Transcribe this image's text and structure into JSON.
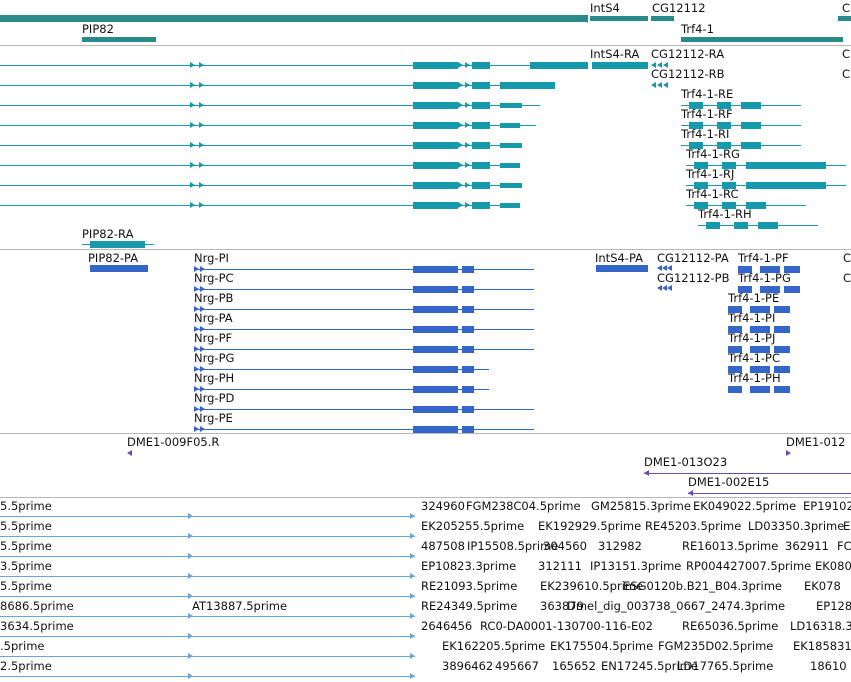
{
  "gene_track": {
    "labels": [
      "IntS4",
      "CG12112",
      "C",
      "PIP82",
      "Trf4-1"
    ]
  },
  "transcript_track": {
    "labels": [
      "IntS4-RA",
      "CG12112-RA",
      "C",
      "CG12112-RB",
      "C",
      "Trf4-1-RE",
      "Trf4-1-RF",
      "Trf4-1-RI",
      "Trf4-1-RG",
      "Trf4-1-RJ",
      "Trf4-1-RC",
      "Trf4-1-RH",
      "PIP82-RA"
    ]
  },
  "protein_track": {
    "labels": [
      "PIP82-PA",
      "Nrg-PI",
      "IntS4-PA",
      "CG12112-PA",
      "Trf4-1-PF",
      "C",
      "Nrg-PC",
      "CG12112-PB",
      "Trf4-1-PG",
      "C",
      "Nrg-PB",
      "Trf4-1-PE",
      "Nrg-PA",
      "Trf4-1-PI",
      "Nrg-PF",
      "Trf4-1-PJ",
      "Nrg-PG",
      "Trf4-1-PC",
      "Nrg-PH",
      "Trf4-1-PH",
      "Nrg-PD",
      "Nrg-PE"
    ]
  },
  "clone_track": {
    "labels": [
      "DME1-009F05.R",
      "DME1-012",
      "DME1-013O23",
      "DME1-002E15"
    ]
  },
  "est_track": {
    "rows": [
      [
        "5.5prime",
        "324960",
        "FGM238C04.5prime",
        "GM25815.3prime",
        "EK049022.5prime",
        "EP19102"
      ],
      [
        "5.5prime",
        "EK205255.5prime",
        "EK192929.5prime",
        "RE45203.5prime",
        "LD03350.3prime",
        "EK"
      ],
      [
        "5.5prime",
        "487508",
        "IP15508.5prime",
        "304560",
        "312982",
        "RE16013.5prime",
        "362911",
        "FC"
      ],
      [
        "3.5prime",
        "EP10823.3prime",
        "312111",
        "IP13151.3prime",
        "RP004427007.5prime",
        "EK080"
      ],
      [
        "5.5prime",
        "RE21093.5prime",
        "EK239610.5prime",
        "ESG0120b.B21_B04.3prime",
        "EK078"
      ],
      [
        "8686.5prime",
        "AT13887.5prime",
        "RE24349.5prime",
        "363879",
        "Dmel_dig_003738_0667_2474.3prime",
        "EP128"
      ],
      [
        "3634.5prime",
        "2646456",
        "RC0-DA0001-130700-116-E02",
        "RE65036.5prime",
        "LD16318.3"
      ],
      [
        ".5prime",
        "EK162205.5prime",
        "EK175504.5prime",
        "FGM235D02.5prime",
        "EK185831"
      ],
      [
        "2.5prime",
        "3896462",
        "495667",
        "165652",
        "EN17245.5prime",
        "LD17765.5prime",
        "18610"
      ]
    ]
  },
  "colors": {
    "gene": "#2a8a8a",
    "transcript": "#169aab",
    "protein": "#3465c9",
    "clone": "#6b4bb2",
    "est": "#6ba6d6",
    "divider": "#b8b8b8"
  }
}
